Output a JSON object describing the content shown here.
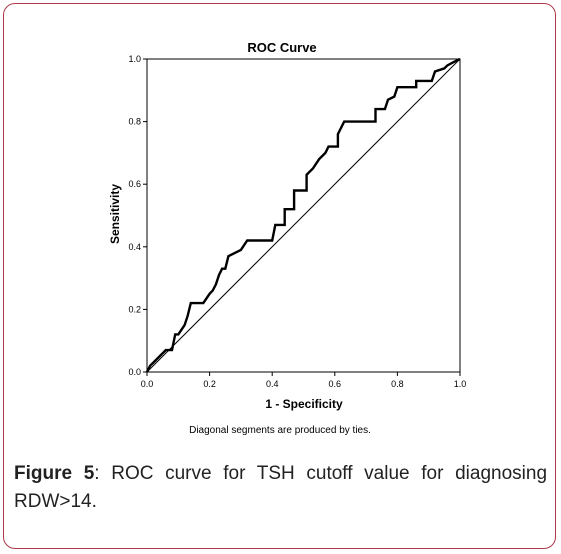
{
  "figure": {
    "label": "Figure 5",
    "caption": ": ROC curve for TSH cutoff value for diagnosing RDW>14."
  },
  "chart_data": {
    "type": "line",
    "title": "ROC Curve",
    "xlabel": "1 - Specificity",
    "ylabel": "Sensitivity",
    "note": "Diagonal segments are produced by ties.",
    "xlim": [
      0,
      1
    ],
    "ylim": [
      0,
      1
    ],
    "xticks": [
      "0.0",
      "0.2",
      "0.4",
      "0.6",
      "0.8",
      "1.0"
    ],
    "yticks": [
      "0.0",
      "0.2",
      "0.4",
      "0.6",
      "0.8",
      "1.0"
    ],
    "grid": false,
    "series": [
      {
        "kind": "roc",
        "points": [
          [
            0,
            0
          ],
          [
            0.01,
            0.02
          ],
          [
            0.02,
            0.03
          ],
          [
            0.03,
            0.04
          ],
          [
            0.04,
            0.05
          ],
          [
            0.05,
            0.06
          ],
          [
            0.06,
            0.07
          ],
          [
            0.08,
            0.07
          ],
          [
            0.09,
            0.12
          ],
          [
            0.1,
            0.12
          ],
          [
            0.12,
            0.15
          ],
          [
            0.13,
            0.18
          ],
          [
            0.14,
            0.22
          ],
          [
            0.18,
            0.22
          ],
          [
            0.2,
            0.25
          ],
          [
            0.21,
            0.26
          ],
          [
            0.22,
            0.28
          ],
          [
            0.23,
            0.31
          ],
          [
            0.24,
            0.33
          ],
          [
            0.25,
            0.33
          ],
          [
            0.26,
            0.37
          ],
          [
            0.28,
            0.38
          ],
          [
            0.3,
            0.39
          ],
          [
            0.32,
            0.42
          ],
          [
            0.4,
            0.42
          ],
          [
            0.41,
            0.47
          ],
          [
            0.44,
            0.47
          ],
          [
            0.44,
            0.52
          ],
          [
            0.47,
            0.52
          ],
          [
            0.47,
            0.58
          ],
          [
            0.51,
            0.58
          ],
          [
            0.51,
            0.63
          ],
          [
            0.53,
            0.65
          ],
          [
            0.55,
            0.68
          ],
          [
            0.57,
            0.7
          ],
          [
            0.58,
            0.72
          ],
          [
            0.61,
            0.72
          ],
          [
            0.61,
            0.76
          ],
          [
            0.63,
            0.8
          ],
          [
            0.73,
            0.8
          ],
          [
            0.73,
            0.84
          ],
          [
            0.76,
            0.84
          ],
          [
            0.77,
            0.87
          ],
          [
            0.79,
            0.88
          ],
          [
            0.8,
            0.91
          ],
          [
            0.86,
            0.91
          ],
          [
            0.86,
            0.93
          ],
          [
            0.91,
            0.93
          ],
          [
            0.92,
            0.96
          ],
          [
            0.95,
            0.97
          ],
          [
            0.96,
            0.98
          ],
          [
            0.98,
            0.99
          ],
          [
            1.0,
            1.0
          ]
        ]
      },
      {
        "kind": "reference",
        "points": [
          [
            0,
            0
          ],
          [
            1,
            1
          ]
        ]
      }
    ],
    "colors": {
      "roc": "#000000",
      "reference": "#000000"
    }
  }
}
